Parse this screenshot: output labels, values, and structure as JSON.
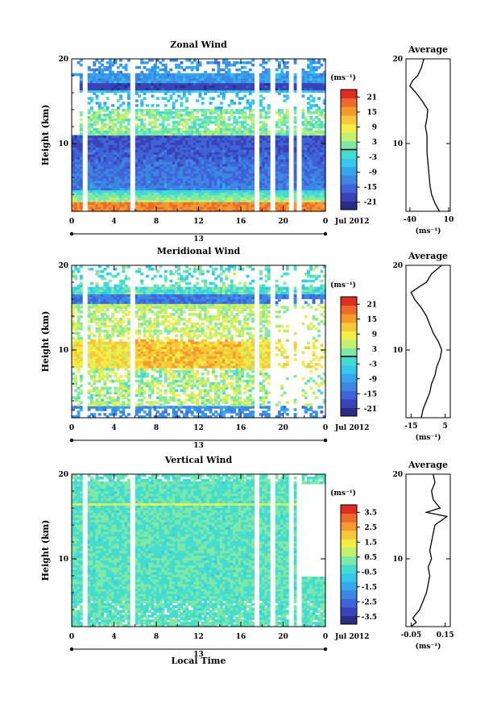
{
  "figure": {
    "shared_xlabel": "Local Time",
    "date_label": "Jul 2012",
    "day_label": "13"
  },
  "chart_data": [
    {
      "type": "heatmap",
      "title": "Zonal Wind",
      "ylabel": "Height (km)",
      "xlim": [
        0,
        24
      ],
      "ylim": [
        2,
        20
      ],
      "xticks": [
        "0",
        "4",
        "8",
        "12",
        "16",
        "20",
        "0"
      ],
      "yticks": [
        "10",
        "20"
      ],
      "colorbar": {
        "unit": "(ms⁻¹)",
        "range": [
          -24,
          24
        ],
        "ticks": [
          "21",
          "15",
          "9",
          "3",
          "-3",
          "-9",
          "-15",
          "-21"
        ],
        "marker": 0
      },
      "profile": {
        "title": "Average",
        "xlabel": "(ms⁻¹)",
        "xticks": [
          "-40",
          "10"
        ],
        "xlim": [
          -45,
          12
        ],
        "yticks": [
          "10",
          "20"
        ],
        "points": [
          [
            -2,
            2
          ],
          [
            -8,
            3
          ],
          [
            -12,
            4
          ],
          [
            -14,
            5
          ],
          [
            -15,
            6
          ],
          [
            -16,
            7
          ],
          [
            -17,
            8
          ],
          [
            -18,
            9
          ],
          [
            -18,
            10
          ],
          [
            -18,
            11
          ],
          [
            -20,
            12
          ],
          [
            -18,
            13
          ],
          [
            -17,
            14
          ],
          [
            -24,
            15
          ],
          [
            -32,
            16
          ],
          [
            -40,
            16.8
          ],
          [
            -36,
            17.5
          ],
          [
            -30,
            18
          ],
          [
            -25,
            19
          ],
          [
            -22,
            20
          ]
        ]
      }
    },
    {
      "type": "heatmap",
      "title": "Meridional Wind",
      "ylabel": "Height (km)",
      "xlim": [
        0,
        24
      ],
      "ylim": [
        2,
        20
      ],
      "xticks": [
        "0",
        "4",
        "8",
        "12",
        "16",
        "20",
        "0"
      ],
      "yticks": [
        "10",
        "20"
      ],
      "colorbar": {
        "unit": "(ms⁻¹)",
        "range": [
          -24,
          24
        ],
        "ticks": [
          "21",
          "15",
          "9",
          "3",
          "-3",
          "-9",
          "-15",
          "-21"
        ],
        "marker": 0
      },
      "profile": {
        "title": "Average",
        "xlabel": "(ms⁻¹)",
        "xticks": [
          "-15",
          "5"
        ],
        "xlim": [
          -18,
          8
        ],
        "yticks": [
          "10",
          "20"
        ],
        "points": [
          [
            -9,
            2
          ],
          [
            -8,
            3
          ],
          [
            -6,
            4
          ],
          [
            -4,
            5
          ],
          [
            -3,
            6
          ],
          [
            -1,
            7
          ],
          [
            0,
            8
          ],
          [
            2,
            9
          ],
          [
            3,
            10
          ],
          [
            1,
            11
          ],
          [
            -2,
            12
          ],
          [
            -4,
            13
          ],
          [
            -6,
            14
          ],
          [
            -9,
            15
          ],
          [
            -13,
            16
          ],
          [
            -15,
            16.8
          ],
          [
            -10,
            17.5
          ],
          [
            -6,
            18
          ],
          [
            -3,
            19
          ],
          [
            3,
            20
          ]
        ]
      }
    },
    {
      "type": "heatmap",
      "title": "Vertical Wind",
      "ylabel": "Height (km)",
      "xlim": [
        0,
        24
      ],
      "ylim": [
        2,
        20
      ],
      "xticks": [
        "0",
        "4",
        "8",
        "12",
        "16",
        "20",
        "0"
      ],
      "yticks": [
        "10",
        "20"
      ],
      "colorbar": {
        "unit": "(ms⁻¹)",
        "range": [
          -4,
          4
        ],
        "ticks": [
          "3.5",
          "2.5",
          "1.5",
          "0.5",
          "-0.5",
          "-1.5",
          "-2.5",
          "-3.5"
        ],
        "marker": null
      },
      "profile": {
        "title": "Average",
        "xlabel": "(ms⁻¹)",
        "xticks": [
          "-0.05",
          "0.15"
        ],
        "xlim": [
          -0.08,
          0.18
        ],
        "yticks": [
          "10",
          "20"
        ],
        "points": [
          [
            -0.05,
            2
          ],
          [
            -0.02,
            2.5
          ],
          [
            -0.04,
            3
          ],
          [
            0.0,
            4
          ],
          [
            0.02,
            5
          ],
          [
            0.04,
            6
          ],
          [
            0.05,
            7
          ],
          [
            0.06,
            8
          ],
          [
            0.05,
            9
          ],
          [
            0.07,
            10
          ],
          [
            0.06,
            11
          ],
          [
            0.07,
            12
          ],
          [
            0.08,
            13
          ],
          [
            0.09,
            14
          ],
          [
            0.16,
            15
          ],
          [
            0.04,
            15.5
          ],
          [
            0.12,
            16
          ],
          [
            0.08,
            17
          ],
          [
            0.07,
            18
          ],
          [
            0.09,
            19
          ],
          [
            0.08,
            20
          ]
        ]
      }
    }
  ]
}
